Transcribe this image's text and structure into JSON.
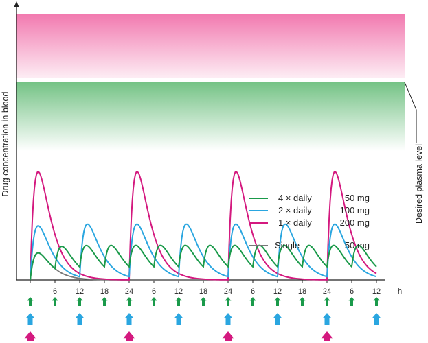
{
  "chart_data": {
    "type": "line",
    "ylabel": "Drug concentration in blood",
    "band_label": "Desired plasma level",
    "x_ticks": [
      "6",
      "12",
      "18",
      "24",
      "6",
      "12",
      "18",
      "24",
      "6",
      "12",
      "18",
      "24",
      "6",
      "12"
    ],
    "x_unit": "h",
    "series": [
      {
        "name": "4 × daily",
        "dose": "50 mg",
        "color": "#1a9a4a",
        "interval_h": 6,
        "gain": 0.38,
        "elim": 0.34,
        "ka": 0.75
      },
      {
        "name": "2 × daily",
        "dose": "100 mg",
        "color": "#2aa6e0",
        "interval_h": 12,
        "gain": 0.76,
        "elim": 0.34,
        "ka": 0.75
      },
      {
        "name": "1 × daily",
        "dose": "200 mg",
        "color": "#d4197f",
        "interval_h": 24,
        "gain": 1.52,
        "elim": 0.34,
        "ka": 0.75
      },
      {
        "name": "Single",
        "dose": "50 mg",
        "color": "#777777",
        "interval_h": 0,
        "gain": 0.38,
        "elim": 0.34,
        "ka": 0.75,
        "end_h": 43
      }
    ],
    "toxic_band_color": "#f06aa6",
    "therapeutic_band_color": "#5cb870",
    "dose_arrows": [
      {
        "series": "4 × daily",
        "color": "#1a9a4a",
        "interval_h": 6
      },
      {
        "series": "2 × daily",
        "color": "#2aa6e0",
        "interval_h": 12
      },
      {
        "series": "1 × daily",
        "color": "#d4197f",
        "interval_h": 24
      }
    ]
  }
}
